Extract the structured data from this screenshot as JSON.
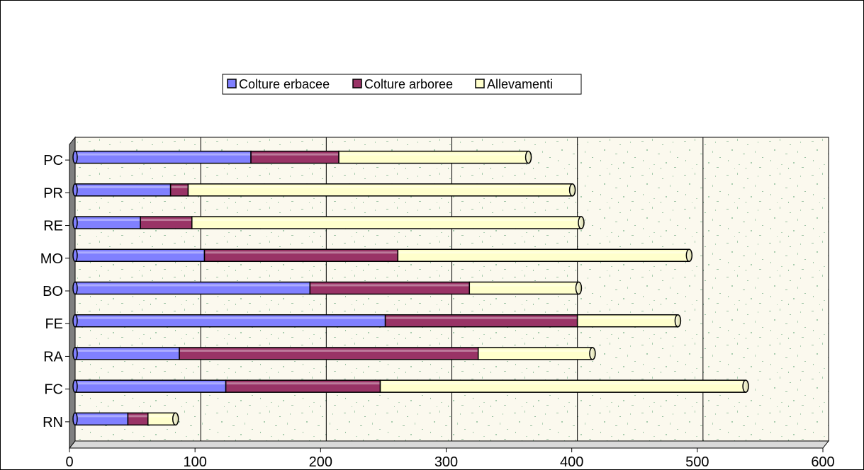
{
  "chart_data": {
    "type": "bar",
    "orientation": "horizontal",
    "stacked": true,
    "categories": [
      "PC",
      "PR",
      "RE",
      "MO",
      "BO",
      "FE",
      "RA",
      "FC",
      "RN"
    ],
    "series": [
      {
        "name": "Colture erbacee",
        "color": "#8080FF",
        "values": [
          140,
          76,
          52,
          103,
          187,
          247,
          83,
          120,
          42
        ]
      },
      {
        "name": "Colture arboree",
        "color": "#993366",
        "values": [
          70,
          14,
          41,
          154,
          127,
          153,
          238,
          123,
          16
        ]
      },
      {
        "name": "Allevamenti",
        "color": "#FFFFCC",
        "values": [
          151,
          306,
          310,
          232,
          87,
          80,
          91,
          291,
          22
        ]
      }
    ],
    "xlim": [
      0,
      600
    ],
    "xticks": [
      "0",
      "100",
      "200",
      "300",
      "400",
      "500",
      "600"
    ],
    "grid": true,
    "legend_position": "top",
    "title": "",
    "xlabel": "",
    "ylabel": ""
  }
}
